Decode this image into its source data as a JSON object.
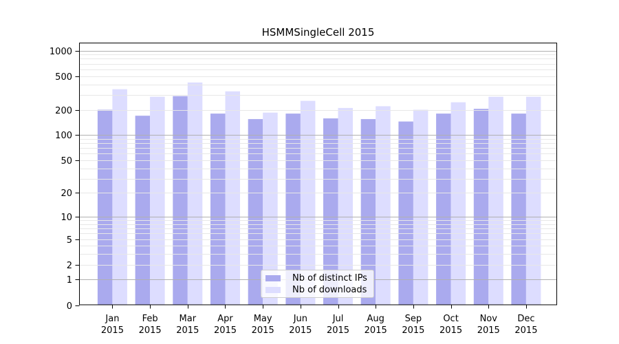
{
  "colors": {
    "background": "#ffffff",
    "bar_distinct_ips": "#aaaaee",
    "bar_downloads": "#ddddff",
    "grid_decade": "#b0b0b0",
    "grid_minor": "#e7e7e7",
    "axis": "#000000",
    "legend_border": "#cccccc",
    "legend_background": "rgba(255,255,255,0.8)",
    "text": "#000000"
  },
  "chart_data": {
    "type": "bar",
    "title": "HSMMSingleCell 2015",
    "categories": [
      "Jan",
      "Feb",
      "Mar",
      "Apr",
      "May",
      "Jun",
      "Jul",
      "Aug",
      "Sep",
      "Oct",
      "Nov",
      "Dec"
    ],
    "x_sublabel": "2015",
    "series": [
      {
        "name": "Nb of distinct IPs",
        "color": "#aaaaee",
        "values": [
          200,
          170,
          290,
          180,
          155,
          180,
          158,
          155,
          145,
          180,
          205,
          180
        ]
      },
      {
        "name": "Nb of downloads",
        "color": "#ddddff",
        "values": [
          350,
          285,
          420,
          330,
          185,
          255,
          210,
          220,
          200,
          245,
          285,
          285
        ]
      }
    ],
    "xlabel": "",
    "ylabel": "",
    "y_axis": {
      "scale": "log1p",
      "tick_labels": [
        "0",
        "1",
        "2",
        "5",
        "10",
        "20",
        "50",
        "100",
        "200",
        "500",
        "1000"
      ],
      "ticks": [
        0,
        1,
        2,
        5,
        10,
        20,
        50,
        100,
        200,
        500,
        1000
      ],
      "ylim": [
        0,
        1240
      ]
    },
    "grid": {
      "shown": true,
      "drawn_over_bars": true,
      "decade_lines": [
        1,
        10,
        100,
        1000
      ],
      "minor_multipliers": [
        2,
        3,
        4,
        5,
        6,
        7,
        8,
        9
      ],
      "minor_decades": [
        1,
        10,
        100
      ]
    },
    "legend": {
      "position": "bottom-center",
      "entries": [
        "Nb of distinct IPs",
        "Nb of downloads"
      ]
    }
  }
}
